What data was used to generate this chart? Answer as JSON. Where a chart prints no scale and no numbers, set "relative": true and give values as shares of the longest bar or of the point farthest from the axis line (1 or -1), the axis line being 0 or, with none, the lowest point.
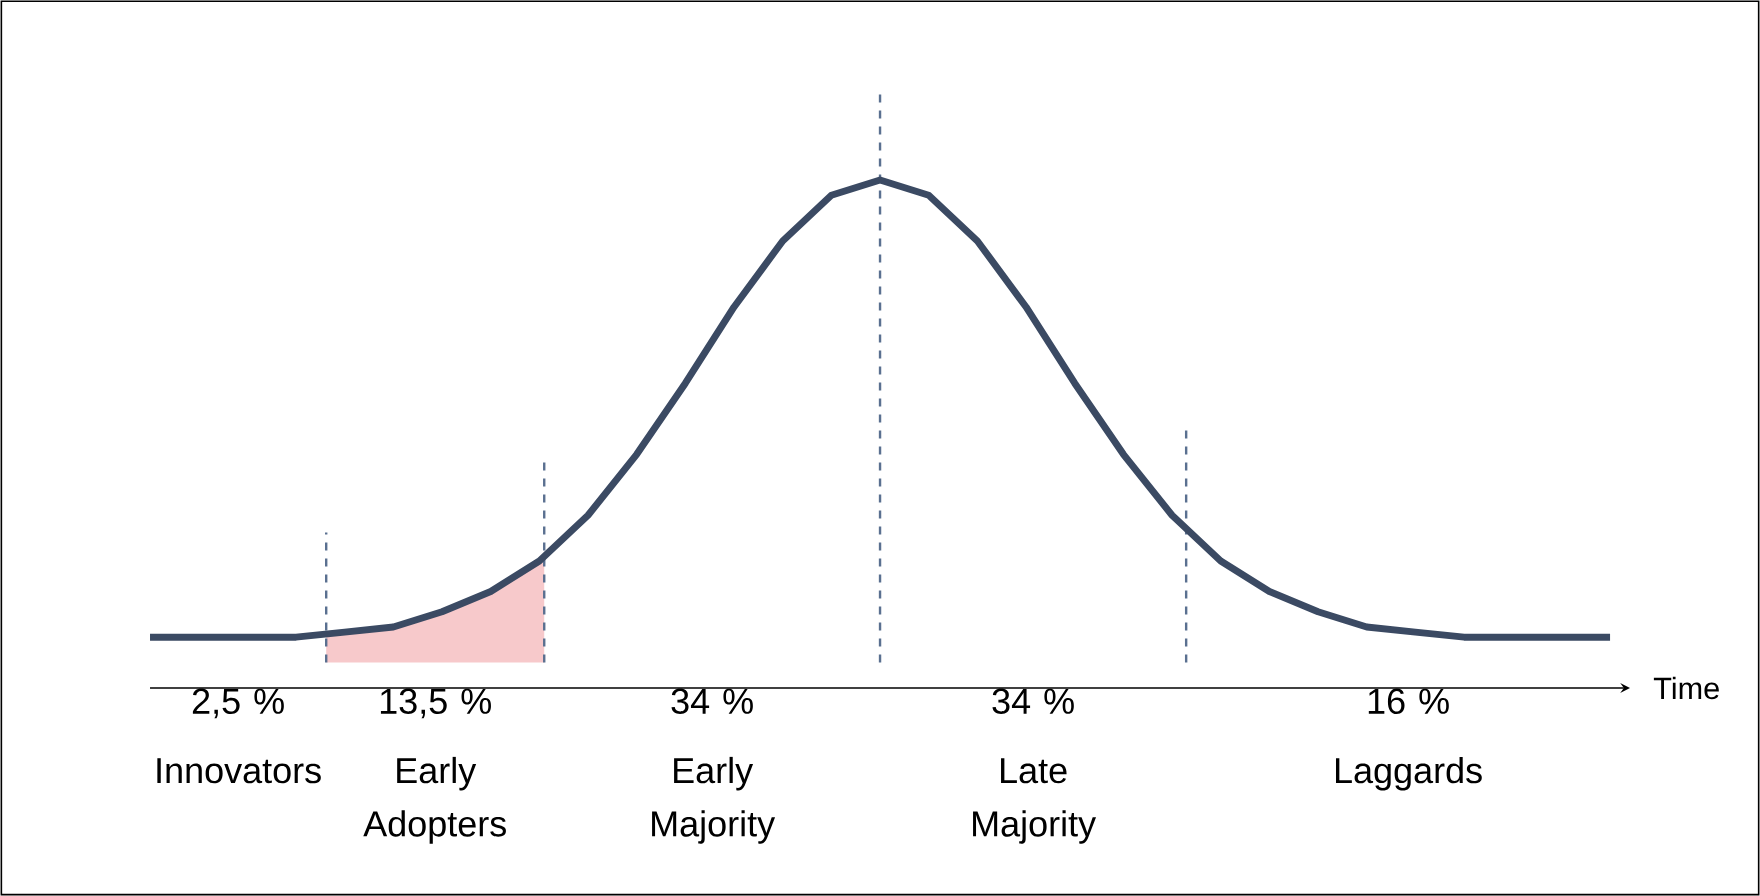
{
  "chart_data": {
    "type": "line",
    "relative": true,
    "xlabel": "Time",
    "tick_labels": false,
    "marker": "none",
    "line_style": "solid",
    "categories": [
      null,
      null,
      null,
      null,
      null,
      null,
      null,
      null,
      null,
      null,
      null,
      null,
      null,
      null,
      null,
      null,
      null,
      null,
      null,
      null,
      null,
      null,
      null,
      null,
      null,
      null,
      null,
      null,
      null,
      null,
      null
    ],
    "series": [
      {
        "color": "#3b4a63",
        "values": [
          0.1,
          0.1,
          0.1,
          0.1,
          0.11,
          0.12,
          0.15,
          0.19,
          0.25,
          0.34,
          0.46,
          0.6,
          0.75,
          0.88,
          0.97,
          1.0,
          0.97,
          0.88,
          0.75,
          0.6,
          0.46,
          0.34,
          0.25,
          0.19,
          0.15,
          0.12,
          0.11,
          0.1,
          0.1,
          0.1,
          0.1
        ]
      }
    ],
    "annotations": [
      "2,5 %",
      "Innovators",
      "13,5 %",
      "Early Adopters",
      "34 %",
      "Early Majority",
      "34 %",
      "Late Majority",
      "16 %",
      "Laggards"
    ]
  }
}
